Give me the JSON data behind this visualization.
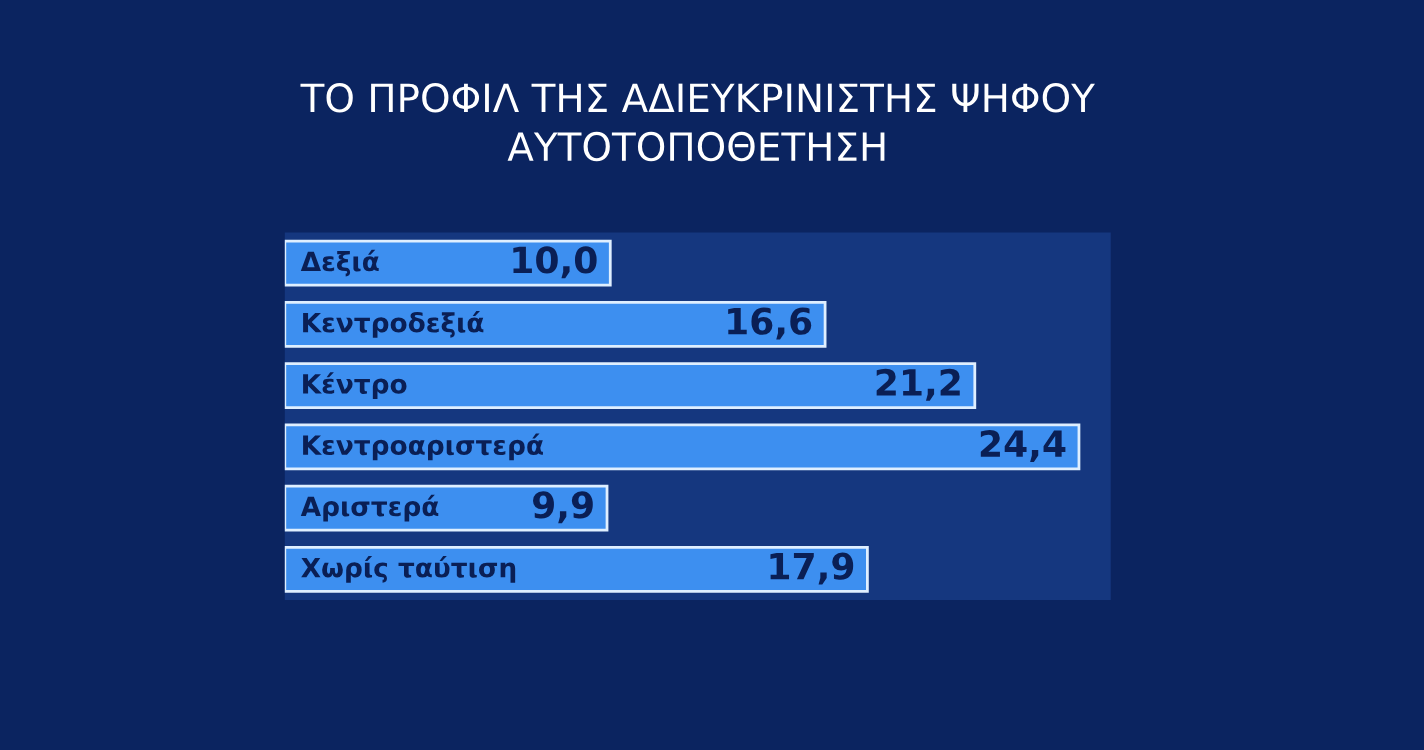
{
  "chart_data": {
    "type": "bar",
    "orientation": "horizontal",
    "title": "ΤΟ ΠΡΟΦΙΛ ΤΗΣ ΑΔΙΕΥΚΡΙΝΙΣΤΗΣ ΨΗΦΟΥ",
    "subtitle": "ΑΥΤΟΤΟΠΟΘΕΤΗΣΗ",
    "categories": [
      "Δεξιά",
      "Κεντροδεξιά",
      "Κέντρο",
      "Κεντροαριστερά",
      "Αριστερά",
      "Χωρίς ταύτιση"
    ],
    "values": [
      10.0,
      16.6,
      21.2,
      24.4,
      9.9,
      17.9
    ],
    "value_labels": [
      "10,0",
      "16,6",
      "21,2",
      "24,4",
      "9,9",
      "17,9"
    ],
    "color": "#3d8ff0"
  }
}
